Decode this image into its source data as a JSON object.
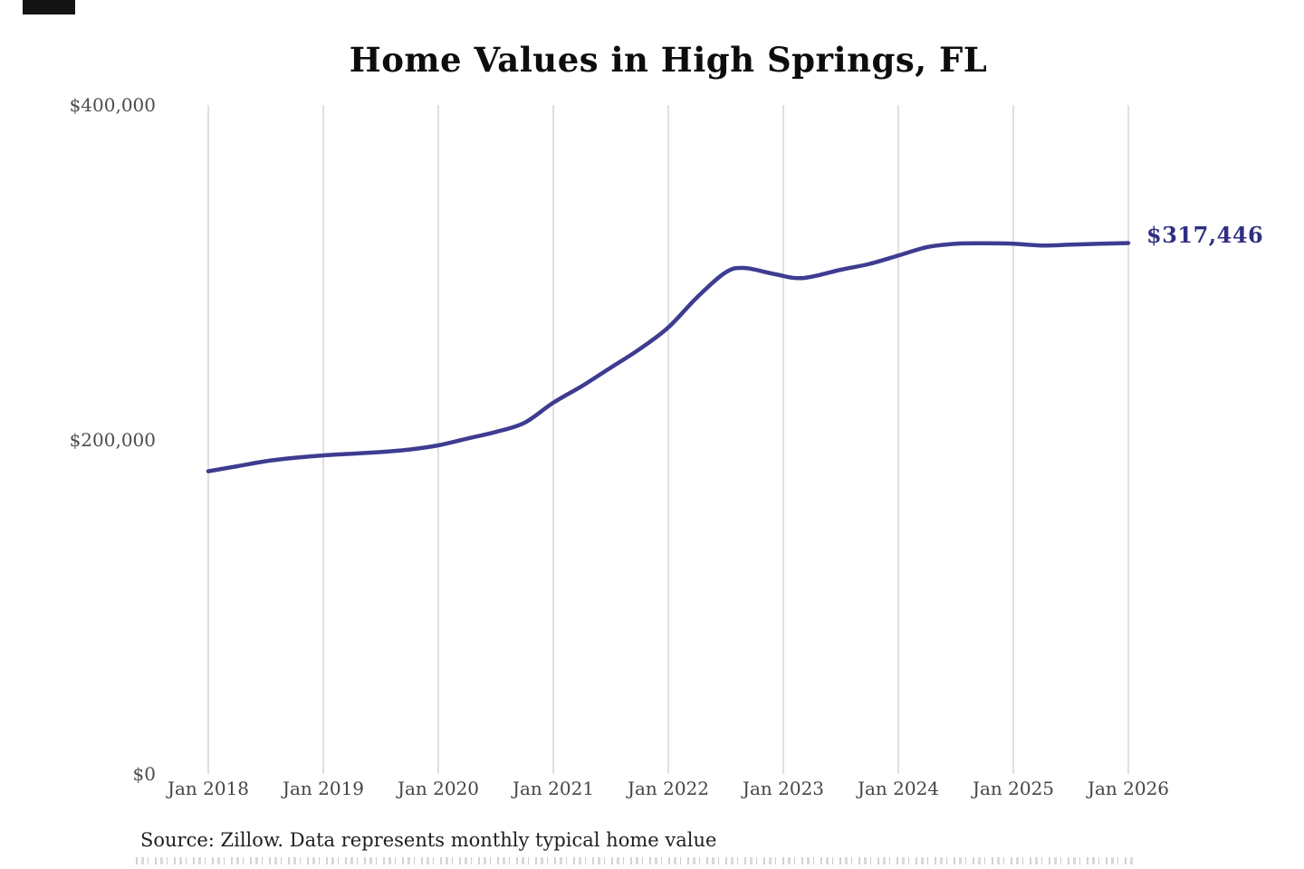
{
  "title": "Home Values in High Springs, FL",
  "end_label": "$317,446",
  "source_note": "Source: Zillow. Data represents monthly typical home value",
  "colors": {
    "line": "#3d3c90",
    "end_label": "#2f2f82",
    "gridline": "#cccccc",
    "tick_text": "#4d4d4d",
    "title_text": "#0d0d0d",
    "source_text": "#1f1f1f"
  },
  "chart_data": {
    "type": "line",
    "title": "Home Values in High Springs, FL",
    "xlabel": "",
    "ylabel": "",
    "ylim": [
      0,
      400000
    ],
    "grid": "vertical-only",
    "legend": "none",
    "x_tick_labels": [
      "Jan 2018",
      "Jan 2019",
      "Jan 2020",
      "Jan 2021",
      "Jan 2022",
      "Jan 2023",
      "Jan 2024",
      "Jan 2025",
      "Jan 2026"
    ],
    "y_ticks": [
      {
        "label": "$400,000",
        "value": 400000
      },
      {
        "label": "$200,000",
        "value": 200000
      },
      {
        "label": "$0",
        "value": 0
      }
    ],
    "final_value_label": "$317,446",
    "series": [
      {
        "name": "Monthly typical home value",
        "points": [
          {
            "month": "2018-01",
            "value": 181000
          },
          {
            "month": "2018-04",
            "value": 184000
          },
          {
            "month": "2018-07",
            "value": 187000
          },
          {
            "month": "2018-10",
            "value": 189000
          },
          {
            "month": "2019-01",
            "value": 190500
          },
          {
            "month": "2019-04",
            "value": 191500
          },
          {
            "month": "2019-07",
            "value": 192500
          },
          {
            "month": "2019-10",
            "value": 194000
          },
          {
            "month": "2020-01",
            "value": 196500
          },
          {
            "month": "2020-04",
            "value": 200500
          },
          {
            "month": "2020-07",
            "value": 204500
          },
          {
            "month": "2020-10",
            "value": 210000
          },
          {
            "month": "2021-01",
            "value": 222000
          },
          {
            "month": "2021-04",
            "value": 232000
          },
          {
            "month": "2021-07",
            "value": 243000
          },
          {
            "month": "2021-10",
            "value": 254000
          },
          {
            "month": "2022-01",
            "value": 267000
          },
          {
            "month": "2022-04",
            "value": 285000
          },
          {
            "month": "2022-07",
            "value": 300000
          },
          {
            "month": "2022-09",
            "value": 302500
          },
          {
            "month": "2022-12",
            "value": 299000
          },
          {
            "month": "2023-03",
            "value": 296500
          },
          {
            "month": "2023-07",
            "value": 301500
          },
          {
            "month": "2023-10",
            "value": 305000
          },
          {
            "month": "2024-01",
            "value": 310000
          },
          {
            "month": "2024-04",
            "value": 315000
          },
          {
            "month": "2024-07",
            "value": 317000
          },
          {
            "month": "2024-10",
            "value": 317300
          },
          {
            "month": "2025-01",
            "value": 317000
          },
          {
            "month": "2025-04",
            "value": 316000
          },
          {
            "month": "2025-07",
            "value": 316500
          },
          {
            "month": "2025-10",
            "value": 317000
          },
          {
            "month": "2026-01",
            "value": 317446
          }
        ]
      }
    ]
  }
}
